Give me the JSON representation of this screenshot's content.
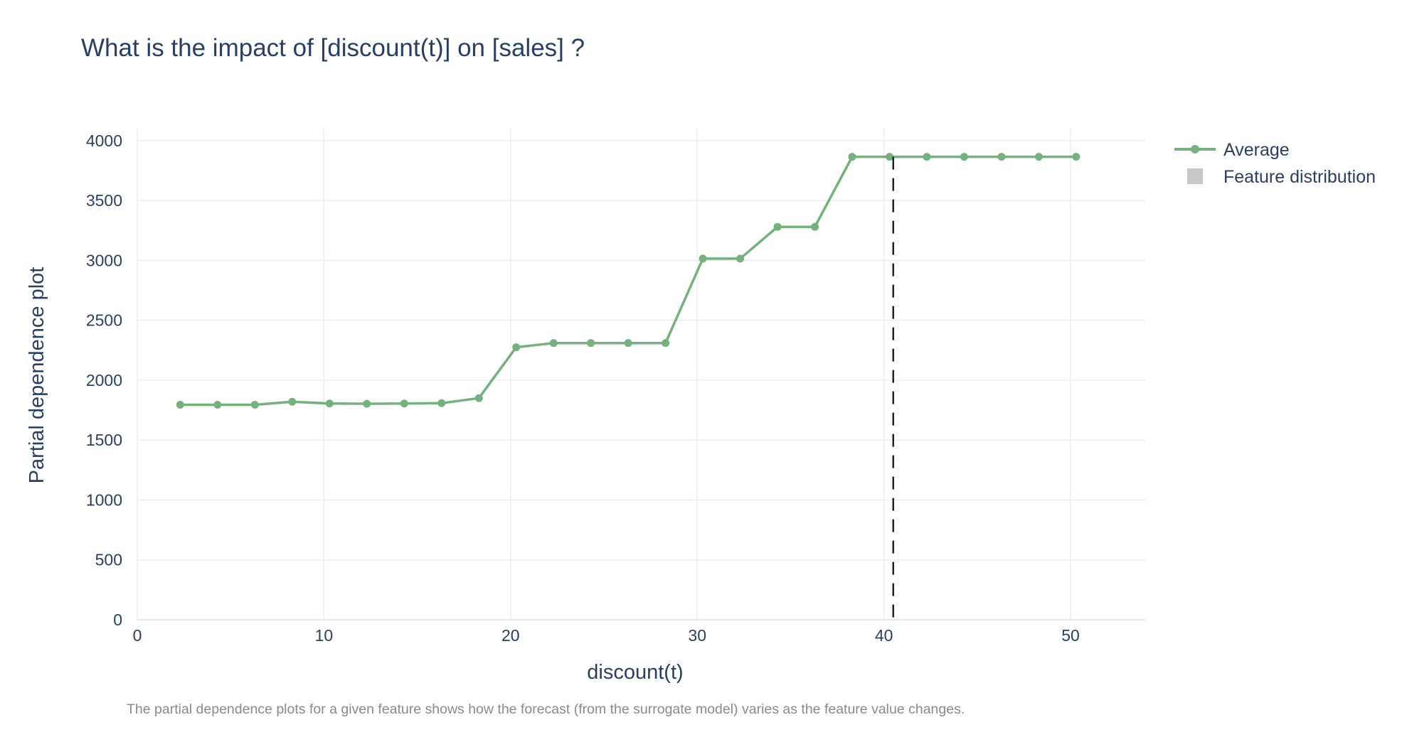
{
  "chart_data": {
    "type": "line",
    "title": "What is the impact of [discount(t)] on [sales] ?",
    "xlabel": "discount(t)",
    "ylabel": "Partial dependence plot",
    "xlim": [
      0,
      54
    ],
    "ylim": [
      0,
      4100
    ],
    "x_ticks": [
      0,
      10,
      20,
      30,
      40,
      50
    ],
    "y_ticks": [
      0,
      500,
      1000,
      1500,
      2000,
      2500,
      3000,
      3500,
      4000
    ],
    "grid": true,
    "legend_position": "top-right",
    "series": [
      {
        "name": "Average",
        "color": "#76b07f",
        "x": [
          2.3,
          4.3,
          6.3,
          8.3,
          10.3,
          12.3,
          14.3,
          16.3,
          18.3,
          20.3,
          22.3,
          24.3,
          26.3,
          28.3,
          30.3,
          32.3,
          34.3,
          36.3,
          38.3,
          40.3,
          42.3,
          44.3,
          46.3,
          48.3,
          50.3
        ],
        "y": [
          1795,
          1795,
          1795,
          1820,
          1805,
          1803,
          1805,
          1808,
          1850,
          2275,
          2310,
          2310,
          2310,
          2310,
          3015,
          3015,
          3280,
          3280,
          3865,
          3865,
          3865,
          3865,
          3865,
          3865,
          3865
        ]
      }
    ],
    "feature_distribution": {
      "name": "Feature distribution",
      "color": "#c8c8c8"
    },
    "reference_line": {
      "x": 40.5,
      "style": "dashed",
      "color": "#222222"
    },
    "caption": "The partial dependence plots for a given feature shows how the forecast  (from the surrogate model) varies as the feature value changes."
  }
}
